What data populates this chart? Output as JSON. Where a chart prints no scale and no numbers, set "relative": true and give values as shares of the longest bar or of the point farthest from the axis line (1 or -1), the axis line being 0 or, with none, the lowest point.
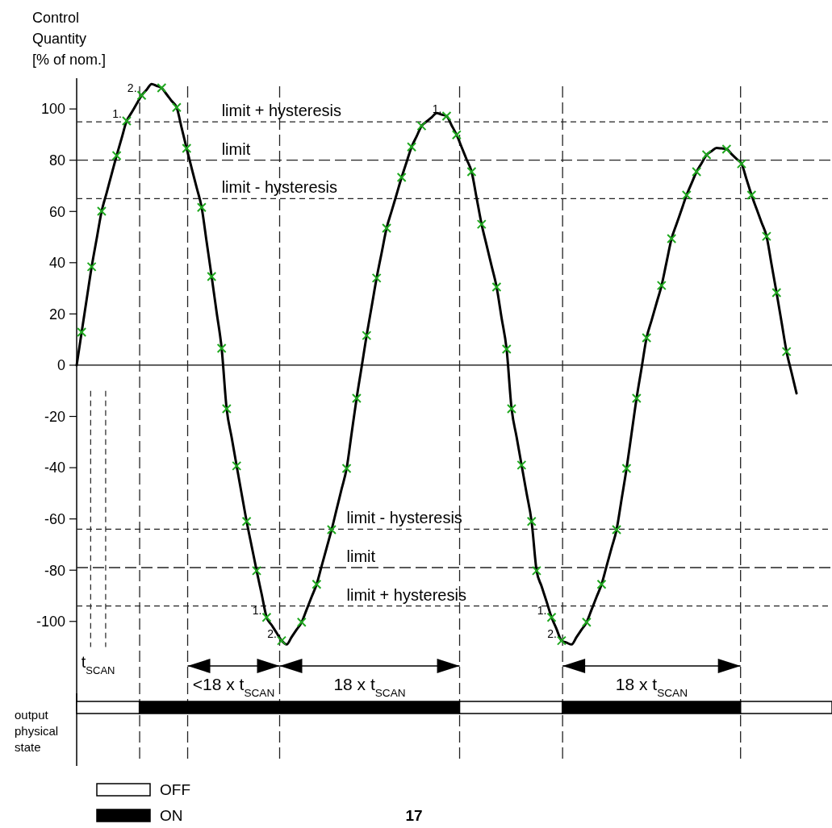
{
  "chart_data": [
    {
      "type": "line",
      "ylabel": "Control\nQuantity\n[% of nom.]",
      "categories": [
        null,
        null,
        null,
        null,
        null,
        null,
        null,
        null,
        null,
        null,
        null,
        null,
        null,
        null,
        null,
        null,
        null,
        null,
        null,
        null,
        null,
        null,
        null,
        null,
        null,
        null,
        null,
        null,
        null,
        null,
        null,
        null,
        null,
        null,
        null,
        null,
        null,
        null,
        null,
        null,
        null,
        null,
        null,
        null,
        null,
        null,
        null,
        null,
        null,
        null,
        null,
        null,
        null,
        null,
        null,
        null,
        null,
        null,
        null,
        null,
        null,
        null,
        null,
        null,
        null,
        null,
        null,
        null,
        null,
        null,
        null,
        null,
        null,
        null,
        null,
        null,
        null,
        null,
        null,
        null,
        null,
        null,
        null,
        null,
        null,
        null,
        null,
        null,
        null,
        null,
        null,
        null,
        null,
        null,
        null,
        null,
        null,
        null,
        null,
        null,
        null,
        null,
        null,
        null,
        null,
        null,
        null,
        null,
        null,
        null,
        null,
        null,
        null,
        null,
        null,
        null,
        null,
        null,
        null,
        null,
        null,
        null,
        null,
        null,
        null,
        null,
        null,
        null,
        null,
        null,
        null,
        null,
        null,
        null,
        null,
        null,
        null,
        null,
        null,
        null,
        null,
        null,
        null,
        null,
        null
      ],
      "ylim": [
        -135,
        112
      ],
      "yticks": [
        -100,
        -80,
        -60,
        -40,
        -20,
        0,
        20,
        40,
        60,
        80,
        100
      ],
      "tick_labels": "y",
      "series": [
        {
          "type": "line",
          "color": "#000000",
          "line_style": "solid",
          "values": [
            0,
            12.9,
            25.7,
            38.4,
            49.3,
            60.1,
            67.3,
            74.6,
            81.8,
            88.6,
            95.3,
            98.6,
            102.0,
            105.3,
            107.5,
            109.7,
            109.0,
            108.2,
            105.7,
            103.1,
            100.6,
            92.6,
            84.6,
            76.9,
            69.3,
            61.6,
            48.1,
            34.6,
            20.6,
            6.6,
            -17,
            -28.2,
            -39.3,
            -50.2,
            -61,
            -70.6,
            -80.2,
            -89.3,
            -98.4,
            -101.4,
            -104.5,
            -107.5,
            -109,
            -106.1,
            -103.2,
            -100.3,
            -95.4,
            -90.4,
            -85.5,
            -78.4,
            -71.3,
            -64.2,
            -56.2,
            -48.3,
            -40.3,
            -26.6,
            -12.9,
            -0.7,
            11.6,
            22.8,
            34,
            43.8,
            53.5,
            60.1,
            66.7,
            73.3,
            79.3,
            85.2,
            89.3,
            93.4,
            95.1,
            96.7,
            98.4,
            97.8,
            97.2,
            93.6,
            89.9,
            85.1,
            80.3,
            75.5,
            65.3,
            55,
            46.8,
            38.7,
            30.5,
            18.4,
            6.3,
            -17,
            -28,
            -39,
            -50,
            -61,
            -80.2,
            -86.3,
            -92.3,
            -98.4,
            -103,
            -107.5,
            -108.3,
            -109,
            -106.1,
            -103.2,
            -100.3,
            -95.4,
            -90.4,
            -85.5,
            -78.4,
            -71.3,
            -64.2,
            -52.3,
            -40.3,
            -26.6,
            -12.9,
            -1.1,
            10.7,
            17.5,
            24.3,
            31.1,
            40.3,
            49.4,
            55.1,
            60.7,
            66.4,
            71,
            75.5,
            78.8,
            82.1,
            83.5,
            84.8,
            84.6,
            84.3,
            82.4,
            80.5,
            78.6,
            72.5,
            66.4,
            61.0,
            55.7,
            50.3,
            39.3,
            28.3,
            16.8,
            5.3,
            -2.9,
            -11
          ]
        },
        {
          "type": "scatter",
          "color": "#1fa81f",
          "marker": "cross",
          "values": [
            null,
            12.9,
            null,
            38.4,
            null,
            60.1,
            null,
            null,
            81.8,
            null,
            95.3,
            null,
            null,
            105.3,
            null,
            null,
            null,
            108.2,
            null,
            null,
            100.6,
            null,
            84.6,
            null,
            null,
            61.6,
            null,
            34.6,
            null,
            6.6,
            -17,
            null,
            -39.3,
            null,
            -61,
            null,
            -80.2,
            null,
            -98.4,
            null,
            null,
            -107.5,
            null,
            null,
            null,
            -100.3,
            null,
            null,
            -85.5,
            null,
            null,
            -64.2,
            null,
            null,
            -40.3,
            null,
            -12.9,
            null,
            11.6,
            null,
            34,
            null,
            53.5,
            null,
            null,
            73.3,
            null,
            85.2,
            null,
            93.4,
            null,
            null,
            null,
            null,
            97.2,
            null,
            89.9,
            null,
            null,
            75.5,
            null,
            55,
            null,
            null,
            30.5,
            null,
            6.3,
            -17,
            null,
            -39,
            null,
            -61,
            -80.2,
            null,
            null,
            -98.4,
            null,
            -107.5,
            null,
            null,
            null,
            null,
            -100.3,
            null,
            null,
            -85.5,
            null,
            null,
            -64.2,
            null,
            -40.3,
            null,
            -12.9,
            null,
            10.7,
            null,
            null,
            31.1,
            null,
            49.4,
            null,
            null,
            66.4,
            null,
            75.5,
            null,
            82.1,
            null,
            null,
            null,
            84.3,
            null,
            null,
            78.6,
            null,
            66.4,
            null,
            null,
            50.3,
            null,
            28.3,
            null,
            5.3,
            null,
            null
          ]
        }
      ],
      "ref_lines": [
        {
          "axis": "y",
          "value": 95,
          "label": "limit + hysteresis",
          "line_style": "dashed"
        },
        {
          "axis": "y",
          "value": 80,
          "label": "limit",
          "line_style": "dashed"
        },
        {
          "axis": "y",
          "value": 65,
          "label": "limit - hysteresis",
          "line_style": "dashed"
        },
        {
          "axis": "y",
          "value": -64,
          "label": "limit - hysteresis",
          "line_style": "dashed"
        },
        {
          "axis": "y",
          "value": -79,
          "label": "limit",
          "line_style": "dashed"
        },
        {
          "axis": "y",
          "value": -94,
          "label": "limit + hysteresis",
          "line_style": "dashed"
        }
      ],
      "annotations": [
        "t$_{SCAN}$",
        "<18 x t$_{SCAN}$",
        "18 x t$_{SCAN}$",
        "18 x t$_{SCAN}$",
        "1.",
        "2.",
        "1.",
        "1.",
        "2.",
        "1.",
        "2."
      ]
    },
    {
      "type": "bar",
      "orientation": "horizontal",
      "stacked": true,
      "relative": true,
      "categories": [
        "output\nphysical\nstate"
      ],
      "tick_labels": "y",
      "legend": "bottom left",
      "series": [
        {
          "name": "OFF",
          "color": "#ffffff",
          "values": [
            0.083
          ]
        },
        {
          "name": "ON",
          "color": "#000000",
          "values": [
            0.424
          ]
        },
        {
          "color": "#ffffff",
          "values": [
            0.136
          ]
        },
        {
          "color": "#000000",
          "values": [
            0.236
          ]
        },
        {
          "color": "#ffffff",
          "values": [
            0.121
          ]
        }
      ],
      "annotations": [
        "17"
      ]
    }
  ]
}
